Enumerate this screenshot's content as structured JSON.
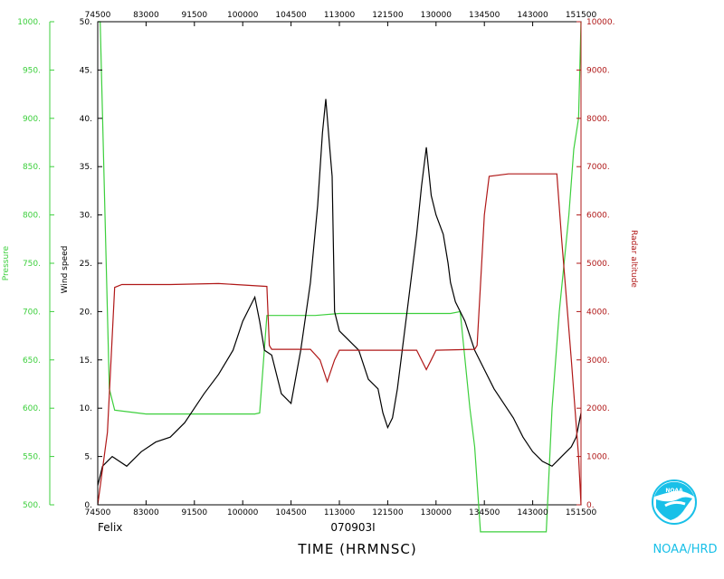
{
  "chart_data": {
    "type": "line",
    "footer_left": "Felix",
    "footer_center": "070903I",
    "xlabel": "TIME (HRMNSC)",
    "left_axes": [
      {
        "label": "Pressure",
        "color": "#3ccf3c",
        "ylim": [
          500,
          1000
        ],
        "ticks": [
          "500.",
          "550.",
          "600.",
          "650.",
          "700.",
          "750.",
          "800.",
          "850.",
          "900.",
          "950.",
          "1000."
        ]
      },
      {
        "label": "Wind speed",
        "color": "#000000",
        "ylim": [
          0,
          50
        ],
        "ticks": [
          "0.",
          "5.",
          "10.",
          "15.",
          "20.",
          "25.",
          "30.",
          "35.",
          "40.",
          "45.",
          "50."
        ]
      }
    ],
    "right_axis": {
      "label": "Radar altitude",
      "color": "#b01818",
      "ylim": [
        0,
        10000
      ],
      "ticks": [
        "0.",
        "1000.",
        "2000.",
        "3000.",
        "4000.",
        "5000.",
        "6000.",
        "7000.",
        "8000.",
        "9000.",
        "10000."
      ]
    },
    "x_ticks": [
      "74500",
      "83000",
      "91500",
      "100000",
      "104500",
      "113000",
      "121500",
      "130000",
      "134500",
      "143000",
      "151500"
    ],
    "grid": false,
    "series": [
      {
        "name": "Pressure",
        "color": "#3ccf3c",
        "points": [
          [
            0,
            1000
          ],
          [
            0.5,
            1000
          ],
          [
            2.4,
            620
          ],
          [
            3.5,
            598
          ],
          [
            10,
            594
          ],
          [
            20,
            594
          ],
          [
            32.5,
            594
          ],
          [
            33.5,
            595
          ],
          [
            35,
            696
          ],
          [
            45,
            696
          ],
          [
            50,
            698
          ],
          [
            60,
            698
          ],
          [
            73,
            698
          ],
          [
            75,
            700
          ],
          [
            77,
            600
          ],
          [
            78,
            560
          ],
          [
            79.2,
            472
          ],
          [
            89,
            472
          ],
          [
            92.8,
            472
          ],
          [
            94,
            600
          ],
          [
            95.5,
            700
          ],
          [
            97.5,
            800
          ],
          [
            98.5,
            868
          ],
          [
            99.5,
            900
          ],
          [
            100,
            1000
          ]
        ]
      },
      {
        "name": "Wind speed",
        "color": "#000000",
        "points": [
          [
            0,
            2
          ],
          [
            1,
            4
          ],
          [
            3,
            5
          ],
          [
            6,
            4
          ],
          [
            9,
            5.5
          ],
          [
            12,
            6.5
          ],
          [
            15,
            7
          ],
          [
            18,
            8.5
          ],
          [
            20,
            10
          ],
          [
            22,
            11.5
          ],
          [
            25,
            13.5
          ],
          [
            28,
            16
          ],
          [
            30,
            19
          ],
          [
            31.5,
            20.5
          ],
          [
            32.5,
            21.5
          ],
          [
            33.5,
            19
          ],
          [
            34.5,
            16
          ],
          [
            36,
            15.5
          ],
          [
            38,
            11.5
          ],
          [
            40,
            10.5
          ],
          [
            42,
            16
          ],
          [
            44,
            23
          ],
          [
            45.5,
            31
          ],
          [
            46.5,
            38.5
          ],
          [
            47.2,
            42
          ],
          [
            48,
            37
          ],
          [
            48.5,
            34
          ],
          [
            49,
            20
          ],
          [
            50,
            18
          ],
          [
            52,
            17
          ],
          [
            54,
            16
          ],
          [
            56,
            13
          ],
          [
            58,
            12
          ],
          [
            59,
            9.5
          ],
          [
            60,
            8
          ],
          [
            61,
            9
          ],
          [
            62,
            12
          ],
          [
            64,
            20
          ],
          [
            66,
            28
          ],
          [
            67,
            33
          ],
          [
            68,
            37
          ],
          [
            69,
            32
          ],
          [
            70,
            30
          ],
          [
            71.5,
            28
          ],
          [
            72.5,
            25
          ],
          [
            73,
            23
          ],
          [
            74,
            21
          ],
          [
            76,
            19
          ],
          [
            78,
            16
          ],
          [
            80,
            14
          ],
          [
            82,
            12
          ],
          [
            84,
            10.5
          ],
          [
            86,
            9
          ],
          [
            88,
            7
          ],
          [
            90,
            5.5
          ],
          [
            92,
            4.5
          ],
          [
            94,
            4
          ],
          [
            96,
            5
          ],
          [
            98,
            6
          ],
          [
            99,
            7
          ],
          [
            100,
            9.5
          ]
        ]
      },
      {
        "name": "Radar altitude",
        "color": "#b01818",
        "points": [
          [
            0,
            0
          ],
          [
            2,
            1500
          ],
          [
            3.5,
            4500
          ],
          [
            5,
            4560
          ],
          [
            15,
            4560
          ],
          [
            25,
            4580
          ],
          [
            35,
            4520
          ],
          [
            35.5,
            3300
          ],
          [
            36,
            3220
          ],
          [
            44,
            3220
          ],
          [
            46,
            3000
          ],
          [
            47.5,
            2550
          ],
          [
            49,
            3000
          ],
          [
            50,
            3200
          ],
          [
            60,
            3200
          ],
          [
            66,
            3200
          ],
          [
            68,
            2800
          ],
          [
            69,
            3000
          ],
          [
            70,
            3200
          ],
          [
            78,
            3220
          ],
          [
            78.5,
            3300
          ],
          [
            80,
            6000
          ],
          [
            81,
            6800
          ],
          [
            85,
            6850
          ],
          [
            95,
            6850
          ],
          [
            96,
            5500
          ],
          [
            98,
            3000
          ],
          [
            99.5,
            1000
          ],
          [
            100,
            0
          ]
        ]
      }
    ]
  }
}
